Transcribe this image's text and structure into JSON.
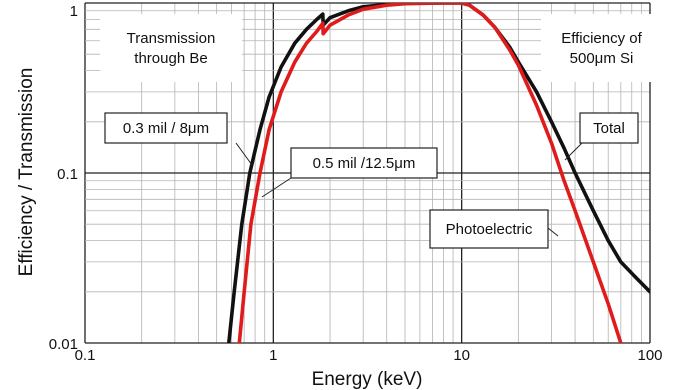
{
  "chart_data": {
    "type": "line",
    "xlabel": "Energy (keV)",
    "ylabel": "Efficiency / Transmission",
    "x_scale": "log",
    "y_scale": "log",
    "xlim": [
      0.1,
      100
    ],
    "ylim": [
      0.01,
      1
    ],
    "x_tick_labels": [
      "0.1",
      "1",
      "10",
      "100"
    ],
    "y_tick_labels": [
      "0.01",
      "0.1",
      "1"
    ],
    "grid": true,
    "colors": {
      "black_curve": "#111111",
      "red_curve": "#e01b1b"
    },
    "series": [
      {
        "color": "#111111",
        "points": [
          [
            0.58,
            0.01
          ],
          [
            0.62,
            0.02
          ],
          [
            0.68,
            0.05
          ],
          [
            0.75,
            0.1
          ],
          [
            0.85,
            0.18
          ],
          [
            0.95,
            0.28
          ],
          [
            1.1,
            0.42
          ],
          [
            1.3,
            0.58
          ],
          [
            1.5,
            0.7
          ],
          [
            1.7,
            0.8
          ],
          [
            1.83,
            0.86
          ],
          [
            1.84,
            0.74
          ],
          [
            2.0,
            0.82
          ],
          [
            2.5,
            0.9
          ],
          [
            3,
            0.95
          ],
          [
            4,
            0.98
          ],
          [
            5,
            1.0
          ],
          [
            8,
            1.0
          ],
          [
            10,
            1.0
          ],
          [
            11,
            0.97
          ],
          [
            13,
            0.85
          ],
          [
            15,
            0.72
          ],
          [
            18,
            0.55
          ],
          [
            20,
            0.45
          ],
          [
            25,
            0.3
          ],
          [
            30,
            0.2
          ],
          [
            35,
            0.14
          ],
          [
            40,
            0.1
          ],
          [
            50,
            0.06
          ],
          [
            60,
            0.04
          ],
          [
            70,
            0.03
          ],
          [
            85,
            0.024
          ],
          [
            100,
            0.02
          ]
        ]
      },
      {
        "color": "#e01b1b",
        "points": [
          [
            0.66,
            0.01
          ],
          [
            0.7,
            0.02
          ],
          [
            0.76,
            0.05
          ],
          [
            0.85,
            0.1
          ],
          [
            0.95,
            0.18
          ],
          [
            1.1,
            0.3
          ],
          [
            1.3,
            0.45
          ],
          [
            1.5,
            0.58
          ],
          [
            1.7,
            0.68
          ],
          [
            1.83,
            0.76
          ],
          [
            1.84,
            0.66
          ],
          [
            2.0,
            0.74
          ],
          [
            2.5,
            0.85
          ],
          [
            3,
            0.92
          ],
          [
            4,
            0.97
          ],
          [
            5,
            0.99
          ],
          [
            8,
            1.0
          ],
          [
            10,
            1.0
          ],
          [
            11,
            0.97
          ],
          [
            13,
            0.85
          ],
          [
            15,
            0.72
          ],
          [
            18,
            0.53
          ],
          [
            20,
            0.43
          ],
          [
            25,
            0.25
          ],
          [
            30,
            0.15
          ],
          [
            35,
            0.09
          ],
          [
            40,
            0.06
          ],
          [
            50,
            0.03
          ],
          [
            60,
            0.017
          ],
          [
            70,
            0.01
          ]
        ]
      }
    ],
    "annotations": [
      {
        "lines": [
          "Transmission",
          "through Be"
        ]
      },
      {
        "lines": [
          "Efficiency of",
          "500μm Si"
        ]
      },
      {
        "lines": [
          "0.3 mil / 8μm"
        ]
      },
      {
        "lines": [
          "0.5 mil /12.5μm"
        ]
      },
      {
        "lines": [
          "Total"
        ]
      },
      {
        "lines": [
          "Photoelectric"
        ]
      }
    ]
  }
}
